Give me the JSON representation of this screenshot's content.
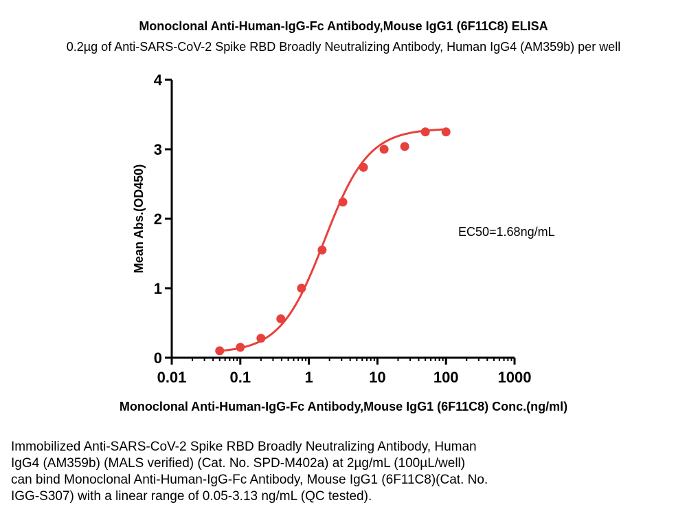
{
  "chart_data": {
    "type": "scatter",
    "title": "Monoclonal Anti-Human-IgG-Fc Antibody,Mouse IgG1 (6F11C8) ELISA",
    "subtitle": "0.2µg of Anti-SARS-CoV-2 Spike RBD Broadly Neutralizing Antibody, Human IgG4 (AM359b) per well",
    "xlabel": "Monoclonal Anti-Human-IgG-Fc Antibody,Mouse IgG1 (6F11C8) Conc.(ng/ml)",
    "ylabel": "Mean Abs.(OD450)",
    "xscale": "log",
    "xlim": [
      0.01,
      1000
    ],
    "ylim": [
      0,
      4
    ],
    "x_ticks": [
      "0.01",
      "0.1",
      "1",
      "10",
      "100",
      "1000"
    ],
    "y_ticks": [
      "0",
      "1",
      "2",
      "3",
      "4"
    ],
    "grid": false,
    "series": [
      {
        "color": "#e8413c",
        "fit": "sigmoid",
        "x": [
          0.05,
          0.1,
          0.2,
          0.39,
          0.78,
          1.56,
          3.13,
          6.25,
          12.5,
          25,
          50,
          100
        ],
        "y": [
          0.1,
          0.15,
          0.28,
          0.56,
          1.0,
          1.55,
          2.24,
          2.74,
          3.0,
          3.04,
          3.25,
          3.25
        ]
      }
    ],
    "fit_params": {
      "bottom": 0.07,
      "top": 3.3,
      "ec50": 1.68,
      "hill": 1.35
    },
    "annotations": [
      {
        "text": "EC50=1.68ng/mL"
      }
    ]
  },
  "caption_lines": [
    "Immobilized Anti-SARS-CoV-2 Spike RBD Broadly Neutralizing Antibody, Human",
    "IgG4 (AM359b) (MALS verified) (Cat. No. SPD-M402a) at 2µg/mL (100µL/well)",
    "can bind Monoclonal Anti-Human-IgG-Fc Antibody, Mouse IgG1 (6F11C8)(Cat. No.",
    "IGG-S307) with a linear range of 0.05-3.13 ng/mL (QC tested)."
  ]
}
